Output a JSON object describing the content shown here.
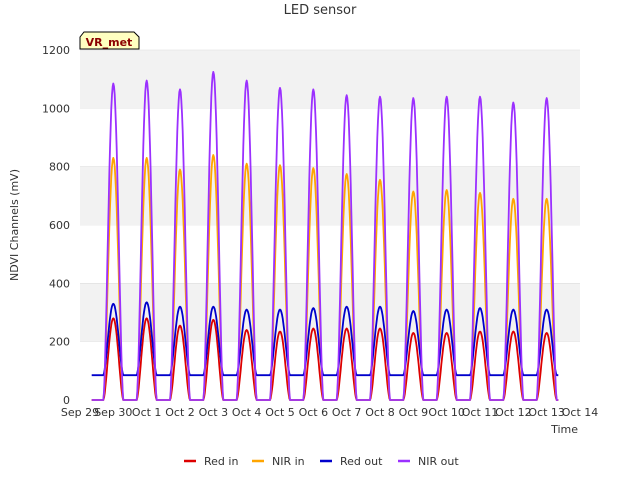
{
  "chart_data": {
    "type": "line",
    "title": "LED sensor",
    "xlabel": "Time",
    "ylabel": "NDVI Channels (mV)",
    "ylim": [
      0,
      1200
    ],
    "xlim": [
      "Sep 29",
      "Oct 14"
    ],
    "x_ticks": [
      "Sep 29",
      "Sep 30",
      "Oct 1",
      "Oct 2",
      "Oct 3",
      "Oct 4",
      "Oct 5",
      "Oct 6",
      "Oct 7",
      "Oct 8",
      "Oct 9",
      "Oct 10",
      "Oct 11",
      "Oct 12",
      "Oct 13",
      "Oct 14"
    ],
    "y_ticks": [
      0,
      200,
      400,
      600,
      800,
      1000,
      1200
    ],
    "grid": "horizontal alternating bands",
    "legend_position": "bottom",
    "badge": "VR_met",
    "x_peak_days": [
      "Sep 30",
      "Oct 1",
      "Oct 2",
      "Oct 3",
      "Oct 4",
      "Oct 5",
      "Oct 6",
      "Oct 7",
      "Oct 8",
      "Oct 9",
      "Oct 10",
      "Oct 11",
      "Oct 12",
      "Oct 13"
    ],
    "series": [
      {
        "name": "Red in",
        "color": "#dd0000",
        "baseline": 0,
        "peaks": [
          280,
          280,
          255,
          275,
          240,
          235,
          245,
          245,
          245,
          230,
          230,
          235,
          235,
          230
        ]
      },
      {
        "name": "NIR in",
        "color": "#ffa500",
        "baseline": 0,
        "peaks": [
          830,
          830,
          790,
          840,
          810,
          805,
          795,
          775,
          755,
          715,
          720,
          710,
          690,
          690
        ]
      },
      {
        "name": "Red out",
        "color": "#0000cc",
        "baseline": 85,
        "peaks": [
          330,
          335,
          320,
          320,
          310,
          310,
          315,
          320,
          320,
          305,
          310,
          315,
          310,
          310
        ]
      },
      {
        "name": "NIR out",
        "color": "#9b30ff",
        "baseline": 0,
        "peaks": [
          1085,
          1095,
          1065,
          1125,
          1095,
          1070,
          1065,
          1045,
          1040,
          1035,
          1040,
          1040,
          1020,
          1035
        ]
      }
    ]
  },
  "colors": {
    "band": "#f2f2f2",
    "grid": "#dddddd",
    "badge_bg": "#ffffc0"
  }
}
